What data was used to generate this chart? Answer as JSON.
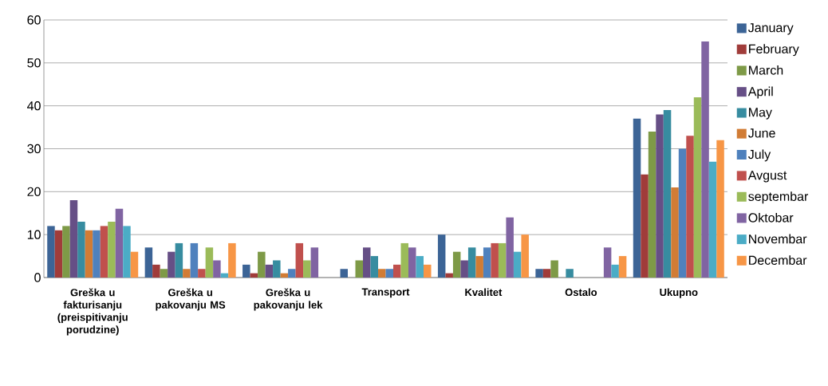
{
  "chart_data": {
    "type": "bar",
    "categories": [
      "Greška u fakturisanju (preispitivanju porudzine)",
      "Greška u pakovanju MS",
      "Greška u pakovanju lek",
      "Transport",
      "Kvalitet",
      "Ostalo",
      "Ukupno"
    ],
    "series": [
      {
        "name": "January",
        "color": "#3c6496",
        "values": [
          12,
          7,
          3,
          2,
          10,
          2,
          37
        ]
      },
      {
        "name": "February",
        "color": "#a03c3a",
        "values": [
          11,
          3,
          1,
          0,
          1,
          2,
          24
        ]
      },
      {
        "name": "March",
        "color": "#7e9a47",
        "values": [
          12,
          2,
          6,
          4,
          6,
          4,
          34
        ]
      },
      {
        "name": "April",
        "color": "#664f86",
        "values": [
          18,
          6,
          3,
          7,
          4,
          0,
          38
        ]
      },
      {
        "name": "May",
        "color": "#378ca0",
        "values": [
          13,
          8,
          4,
          5,
          7,
          2,
          39
        ]
      },
      {
        "name": "June",
        "color": "#d17c35",
        "values": [
          11,
          2,
          1,
          2,
          5,
          0,
          21
        ]
      },
      {
        "name": "July",
        "color": "#4f81bd",
        "values": [
          11,
          8,
          2,
          2,
          7,
          0,
          30
        ]
      },
      {
        "name": "Avgust",
        "color": "#c0504d",
        "values": [
          12,
          2,
          8,
          3,
          8,
          0,
          33
        ]
      },
      {
        "name": "septembar",
        "color": "#9bbb59",
        "values": [
          13,
          7,
          4,
          8,
          8,
          0,
          42
        ]
      },
      {
        "name": "Oktobar",
        "color": "#8064a2",
        "values": [
          16,
          4,
          7,
          7,
          14,
          7,
          55
        ]
      },
      {
        "name": "Novembar",
        "color": "#4bacc6",
        "values": [
          12,
          1,
          0,
          5,
          6,
          3,
          27
        ]
      },
      {
        "name": "Decembar",
        "color": "#f79646",
        "values": [
          6,
          8,
          0,
          3,
          10,
          5,
          32
        ]
      }
    ],
    "ylim": [
      0,
      60
    ],
    "yticks": [
      0,
      10,
      20,
      30,
      40,
      50,
      60
    ],
    "grid": "y",
    "legend": "right"
  }
}
